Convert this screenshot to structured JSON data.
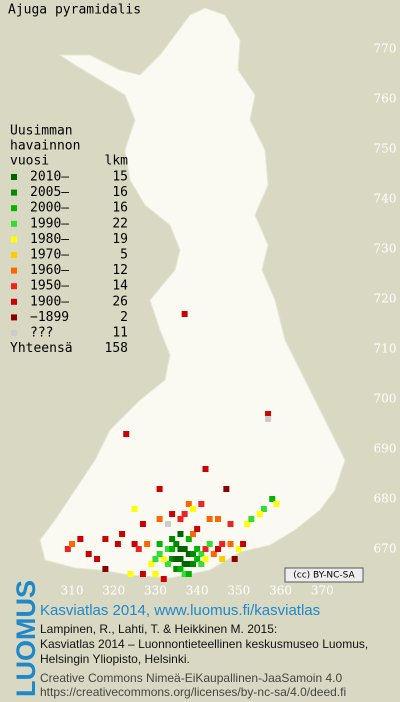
{
  "title": "Ajuga pyramidalis",
  "legend": {
    "heading": [
      "Uusimman",
      "havainnon"
    ],
    "col_headers": [
      "vuosi",
      "lkm"
    ],
    "rows": [
      {
        "label": "2010–",
        "count": 15,
        "color": "#006400"
      },
      {
        "label": "2005–",
        "count": 16,
        "color": "#008a00"
      },
      {
        "label": "2000–",
        "count": 16,
        "color": "#00b400"
      },
      {
        "label": "1990–",
        "count": 22,
        "color": "#33dd33"
      },
      {
        "label": "1980–",
        "count": 19,
        "color": "#ffff00"
      },
      {
        "label": "1970–",
        "count": 5,
        "color": "#ffcc00"
      },
      {
        "label": "1960–",
        "count": 12,
        "color": "#ff6600"
      },
      {
        "label": "1950–",
        "count": 14,
        "color": "#ee2222"
      },
      {
        "label": "1900–",
        "count": 26,
        "color": "#cc0000"
      },
      {
        "label": "−1899",
        "count": 2,
        "color": "#880000"
      },
      {
        "label": "???",
        "count": 11,
        "color": "#cccccc"
      }
    ],
    "total_label": "Yhteensä",
    "total": 158
  },
  "map": {
    "xlim": [
      300,
      380
    ],
    "ylim": [
      665,
      775
    ],
    "xticks": [
      310,
      320,
      330,
      340,
      350,
      360,
      370
    ],
    "yticks": [
      770,
      760,
      750,
      740,
      730,
      720,
      710,
      700,
      690,
      680,
      670
    ],
    "records": [
      [
        337,
        717,
        8
      ],
      [
        357,
        697,
        8
      ],
      [
        357,
        696,
        10
      ],
      [
        323,
        693,
        8
      ],
      [
        342,
        686,
        8
      ],
      [
        331,
        682,
        8
      ],
      [
        347,
        682,
        9
      ],
      [
        358,
        680,
        2
      ],
      [
        359,
        679,
        4
      ],
      [
        356,
        678,
        3
      ],
      [
        355,
        677,
        4
      ],
      [
        352,
        675,
        4
      ],
      [
        353,
        676,
        3
      ],
      [
        348,
        675,
        7
      ],
      [
        345,
        676,
        6
      ],
      [
        338,
        679,
        6
      ],
      [
        339,
        678,
        4
      ],
      [
        334,
        677,
        8
      ],
      [
        337,
        677,
        7
      ],
      [
        343,
        676,
        6
      ],
      [
        341,
        679,
        7
      ],
      [
        336,
        676,
        7
      ],
      [
        333,
        675,
        10
      ],
      [
        331,
        676,
        6
      ],
      [
        325,
        678,
        4
      ],
      [
        327,
        675,
        8
      ],
      [
        322,
        673,
        8
      ],
      [
        321,
        671,
        8
      ],
      [
        318,
        672,
        8
      ],
      [
        312,
        672,
        8
      ],
      [
        309,
        670,
        7
      ],
      [
        310,
        671,
        6
      ],
      [
        314,
        669,
        8
      ],
      [
        316,
        668,
        8
      ],
      [
        318,
        666,
        9
      ],
      [
        325,
        671,
        8
      ],
      [
        326,
        670,
        7
      ],
      [
        328,
        671,
        6
      ],
      [
        329,
        667,
        4
      ],
      [
        330,
        668,
        3
      ],
      [
        324,
        665,
        4
      ],
      [
        327,
        665,
        8
      ],
      [
        330,
        665,
        4
      ],
      [
        332,
        664,
        8
      ],
      [
        333,
        670,
        3
      ],
      [
        334,
        670,
        2
      ],
      [
        335,
        671,
        1
      ],
      [
        336,
        670,
        0
      ],
      [
        337,
        670,
        0
      ],
      [
        338,
        669,
        0
      ],
      [
        339,
        669,
        1
      ],
      [
        340,
        670,
        2
      ],
      [
        341,
        669,
        3
      ],
      [
        334,
        668,
        1
      ],
      [
        335,
        668,
        0
      ],
      [
        336,
        668,
        0
      ],
      [
        337,
        667,
        0
      ],
      [
        338,
        667,
        0
      ],
      [
        339,
        667,
        1
      ],
      [
        340,
        668,
        2
      ],
      [
        333,
        667,
        3
      ],
      [
        332,
        668,
        4
      ],
      [
        335,
        666,
        1
      ],
      [
        336,
        666,
        2
      ],
      [
        337,
        665,
        3
      ],
      [
        338,
        665,
        2
      ],
      [
        341,
        667,
        3
      ],
      [
        342,
        668,
        4
      ],
      [
        342,
        670,
        7
      ],
      [
        344,
        669,
        6
      ],
      [
        345,
        670,
        8
      ],
      [
        346,
        671,
        7
      ],
      [
        348,
        671,
        6
      ],
      [
        350,
        670,
        4
      ],
      [
        351,
        671,
        8
      ],
      [
        349,
        668,
        9
      ],
      [
        346,
        668,
        5
      ],
      [
        343,
        671,
        3
      ],
      [
        331,
        669,
        3
      ],
      [
        331,
        671,
        2
      ],
      [
        334,
        672,
        1
      ],
      [
        336,
        673,
        0
      ],
      [
        338,
        672,
        2
      ],
      [
        339,
        673,
        6
      ],
      [
        340,
        674,
        8
      ]
    ]
  },
  "badge": "(cc) BY-NC-SA",
  "footer": {
    "brand": "LUOMUS",
    "headline": "Kasviatlas 2014, www.luomus.fi/kasviatlas",
    "citation": [
      "Lampinen, R., Lahti, T. & Heikkinen M. 2015:",
      "Kasviatlas 2014 – Luonnontieteellinen keskusmuseo Luomus,",
      "Helsingin Yliopisto, Helsinki."
    ],
    "license": [
      "Creative Commons Nimeä-EiKaupallinen-JaaSamoin 4.0",
      "https://creativecommons.org/licenses/by-nc-sa/4.0/deed.fi"
    ]
  }
}
